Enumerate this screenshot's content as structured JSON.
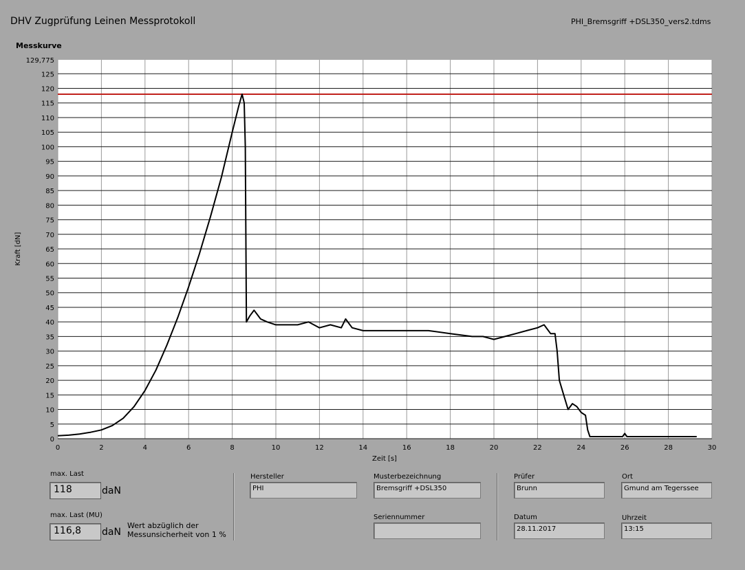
{
  "header": {
    "title": "DHV Zugprüfung Leinen Messprotokoll",
    "file": "PHI_Bremsgriff +DSL350_vers2.tdms"
  },
  "plot": {
    "title": "Messkurve"
  },
  "chart_data": {
    "type": "line",
    "xlabel": "Zeit [s]",
    "ylabel": "Kraft [dN]",
    "xlim": [
      0,
      30
    ],
    "ylim": [
      0,
      129.775
    ],
    "y_top_label": "129,775",
    "x_ticks": [
      "0",
      "2",
      "4",
      "6",
      "8",
      "10",
      "12",
      "14",
      "16",
      "18",
      "20",
      "22",
      "24",
      "26",
      "28",
      "30"
    ],
    "y_ticks": [
      "0",
      "5",
      "10",
      "15",
      "20",
      "25",
      "30",
      "35",
      "40",
      "45",
      "50",
      "55",
      "60",
      "65",
      "70",
      "75",
      "80",
      "85",
      "90",
      "95",
      "100",
      "105",
      "110",
      "115",
      "120",
      "125"
    ],
    "grid": true,
    "limit_line": {
      "y": 118,
      "color": "#c0201a"
    },
    "series": [
      {
        "color": "#000000",
        "x": [
          0,
          0.5,
          1,
          1.5,
          2,
          2.5,
          3,
          3.5,
          4,
          4.5,
          5,
          5.5,
          6,
          6.5,
          7,
          7.5,
          8,
          8.3,
          8.45,
          8.55,
          8.6,
          8.65,
          8.8,
          9.0,
          9.3,
          9.6,
          10,
          10.5,
          11,
          11.5,
          12,
          12.5,
          13,
          13.2,
          13.5,
          14,
          15,
          16,
          17,
          18,
          19,
          19.5,
          20,
          20.5,
          21,
          21.5,
          22,
          22.3,
          22.6,
          22.8,
          22.9,
          23.0,
          23.2,
          23.4,
          23.6,
          23.8,
          24.0,
          24.2,
          24.3,
          24.4,
          25,
          25.9,
          26,
          26.1,
          27,
          28,
          29,
          29.3
        ],
        "y": [
          1,
          1.2,
          1.6,
          2.2,
          3,
          4.5,
          7,
          11,
          16.5,
          23.5,
          32,
          41.5,
          52,
          63.5,
          76,
          89.5,
          105,
          114,
          118,
          115,
          100,
          40,
          42,
          44,
          41,
          40,
          39,
          39,
          39,
          40,
          38,
          39,
          38,
          41,
          38,
          37,
          37,
          37,
          37,
          36,
          35,
          35,
          34,
          35,
          36,
          37,
          38,
          39,
          36,
          36,
          30,
          20,
          15,
          10,
          12,
          11,
          9,
          8,
          3,
          0.7,
          0.7,
          0.7,
          1.8,
          0.7,
          0.7,
          0.7,
          0.7,
          0.7
        ]
      }
    ]
  },
  "results": {
    "max_last_label": "max. Last",
    "max_last_value": "118",
    "max_last_unit": "daN",
    "max_last_mu_label": "max. Last (MU)",
    "max_last_mu_value": "116,8",
    "max_last_mu_unit": "daN",
    "note": "Wert abzüglich der Messunsicherheit von 1 %"
  },
  "info": {
    "hersteller_label": "Hersteller",
    "hersteller_value": "PHI",
    "muster_label": "Musterbezeichnung",
    "muster_value": "Bremsgriff +DSL350",
    "serien_label": "Seriennummer",
    "serien_value": "",
    "pruefer_label": "Prüfer",
    "pruefer_value": "Brunn",
    "ort_label": "Ort",
    "ort_value": "Gmund am Tegerssee",
    "datum_label": "Datum",
    "datum_value": "28.11.2017",
    "uhrzeit_label": "Uhrzeit",
    "uhrzeit_value": "13:15"
  }
}
